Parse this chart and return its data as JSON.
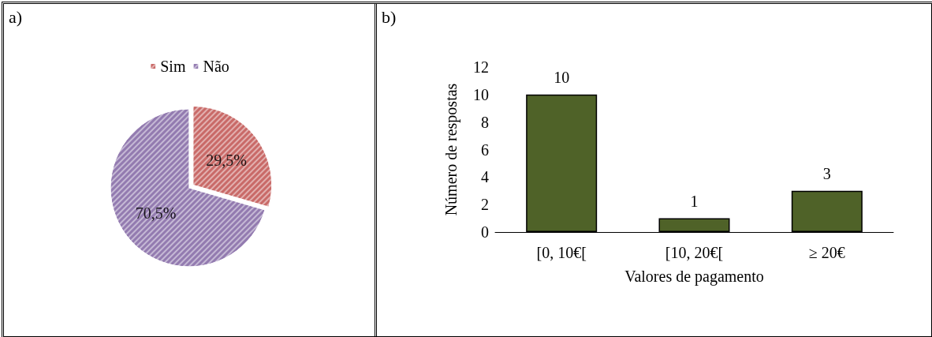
{
  "chart_data": [
    {
      "type": "pie",
      "categories": [
        "Sim",
        "Não"
      ],
      "values": [
        29.5,
        70.5
      ],
      "colors": [
        "#c0504d",
        "#8064a2"
      ],
      "value_labels": [
        "29,5%",
        "70,5%"
      ],
      "legend": "top",
      "annotations": [
        "a)"
      ]
    },
    {
      "type": "bar",
      "categories": [
        "[0, 10€[",
        "[10, 20€[",
        "≥ 20€"
      ],
      "values": [
        10,
        1,
        3
      ],
      "color": "#4f6228",
      "data_labels": true,
      "xlabel": "Valores de pagamento",
      "ylabel": "Número de respostas",
      "ylim": [
        0,
        12
      ],
      "yticks": [
        0,
        2,
        4,
        6,
        8,
        10,
        12
      ],
      "grid": false,
      "annotations": [
        "b)"
      ]
    }
  ]
}
